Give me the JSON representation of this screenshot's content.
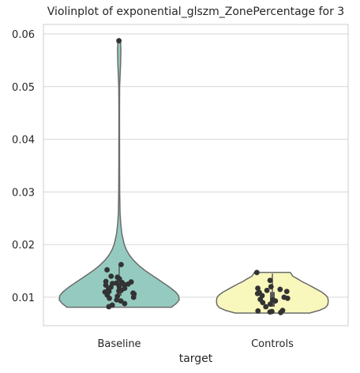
{
  "chart_data": {
    "type": "violin",
    "title": "Violinplot of exponential_glszm_ZonePercentage for 3",
    "xlabel": "target",
    "ylabel": "",
    "categories": [
      "Baseline",
      "Controls"
    ],
    "ylim": [
      0.0046,
      0.0618
    ],
    "yticks": [
      0.01,
      0.02,
      0.03,
      0.04,
      0.05,
      0.06
    ],
    "grid": true,
    "colors": {
      "Baseline": "#95cac0",
      "Controls": "#f8f7bc",
      "outline": "#6b6b6b",
      "points": "#333333",
      "grid": "#d6d6d6",
      "frame": "#cccccc"
    },
    "series": [
      {
        "category": "Baseline",
        "min": 0.0081,
        "max": 0.0587,
        "q1": 0.0103,
        "median": 0.0119,
        "q3": 0.0137,
        "whisker_high": 0.0162,
        "density_profile": [
          [
            0.0081,
            0.87
          ],
          [
            0.0088,
            0.95
          ],
          [
            0.0095,
            1.0
          ],
          [
            0.0103,
            0.99
          ],
          [
            0.011,
            0.94
          ],
          [
            0.012,
            0.83
          ],
          [
            0.013,
            0.7
          ],
          [
            0.014,
            0.57
          ],
          [
            0.015,
            0.44
          ],
          [
            0.016,
            0.33
          ],
          [
            0.017,
            0.24
          ],
          [
            0.018,
            0.17
          ],
          [
            0.019,
            0.12
          ],
          [
            0.02,
            0.085
          ],
          [
            0.022,
            0.045
          ],
          [
            0.024,
            0.025
          ],
          [
            0.026,
            0.014
          ],
          [
            0.03,
            0.008
          ],
          [
            0.035,
            0.006
          ],
          [
            0.04,
            0.0055
          ],
          [
            0.045,
            0.005
          ],
          [
            0.05,
            0.007
          ],
          [
            0.054,
            0.022
          ],
          [
            0.057,
            0.028
          ],
          [
            0.0587,
            0.022
          ]
        ],
        "points": [
          0.0587,
          0.0162,
          0.0152,
          0.014,
          0.0138,
          0.0135,
          0.013,
          0.0129,
          0.0128,
          0.0127,
          0.0126,
          0.0125,
          0.0124,
          0.0123,
          0.0121,
          0.0119,
          0.0117,
          0.0115,
          0.0113,
          0.0112,
          0.0111,
          0.011,
          0.0108,
          0.0106,
          0.0104,
          0.0102,
          0.01,
          0.0098,
          0.0095,
          0.0093,
          0.0088,
          0.0085,
          0.0082
        ]
      },
      {
        "category": "Controls",
        "min": 0.007,
        "max": 0.0147,
        "q1": 0.0082,
        "median": 0.0095,
        "q3": 0.011,
        "whisker_high": 0.0145,
        "density_profile": [
          [
            0.007,
            0.62
          ],
          [
            0.0075,
            0.78
          ],
          [
            0.008,
            0.88
          ],
          [
            0.0085,
            0.92
          ],
          [
            0.009,
            0.93
          ],
          [
            0.0095,
            0.93
          ],
          [
            0.01,
            0.92
          ],
          [
            0.0105,
            0.88
          ],
          [
            0.011,
            0.82
          ],
          [
            0.0115,
            0.74
          ],
          [
            0.012,
            0.66
          ],
          [
            0.0125,
            0.58
          ],
          [
            0.013,
            0.49
          ],
          [
            0.0135,
            0.42
          ],
          [
            0.014,
            0.34
          ],
          [
            0.0147,
            0.3
          ]
        ],
        "points": [
          0.0147,
          0.0132,
          0.012,
          0.0117,
          0.0115,
          0.0113,
          0.0111,
          0.0109,
          0.0107,
          0.0103,
          0.01,
          0.0098,
          0.0096,
          0.0095,
          0.0093,
          0.009,
          0.0087,
          0.0082,
          0.0075,
          0.0074,
          0.0073,
          0.0072,
          0.0071
        ]
      }
    ]
  }
}
